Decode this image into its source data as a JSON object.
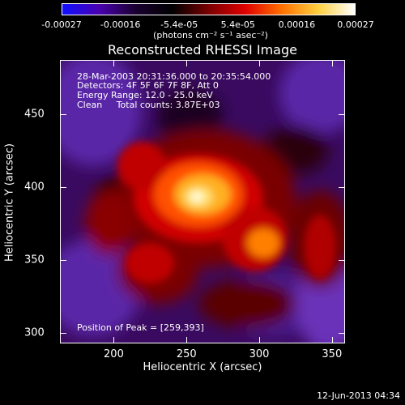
{
  "colorbar": {
    "ticks": [
      "-0.00027",
      "-0.00016",
      "-5.4e-05",
      "5.4e-05",
      "0.00016",
      "0.00027"
    ],
    "unit": "(photons cm⁻² s⁻¹ asec⁻²)",
    "colors": [
      "#1010ff",
      "#4a00b0",
      "#1a0030",
      "#000000",
      "#7a0000",
      "#e00000",
      "#ff7000",
      "#ffd040",
      "#ffffff"
    ]
  },
  "title": "Reconstructed RHESSI Image",
  "annotations": {
    "time_range": "28-Mar-2003 20:31:36.000 to 20:35:54.000",
    "detectors": "Detectors: 4F 5F 6F 7F 8F, Att 0",
    "energy": "Energy Range: 12.0 - 25.0 keV",
    "clean": "Clean     Total counts: 3.87E+03",
    "peak": "Position of Peak = [259,393]"
  },
  "axes": {
    "xlabel": "Heliocentric X (arcsec)",
    "ylabel": "Heliocentric Y (arcsec)",
    "xticks": [
      "200",
      "250",
      "300",
      "350"
    ],
    "yticks": [
      "450",
      "400",
      "350",
      "300"
    ],
    "xrange": [
      163,
      359
    ],
    "yrange": [
      293,
      487
    ]
  },
  "date_stamp": "12-Jun-2013 04:34"
}
